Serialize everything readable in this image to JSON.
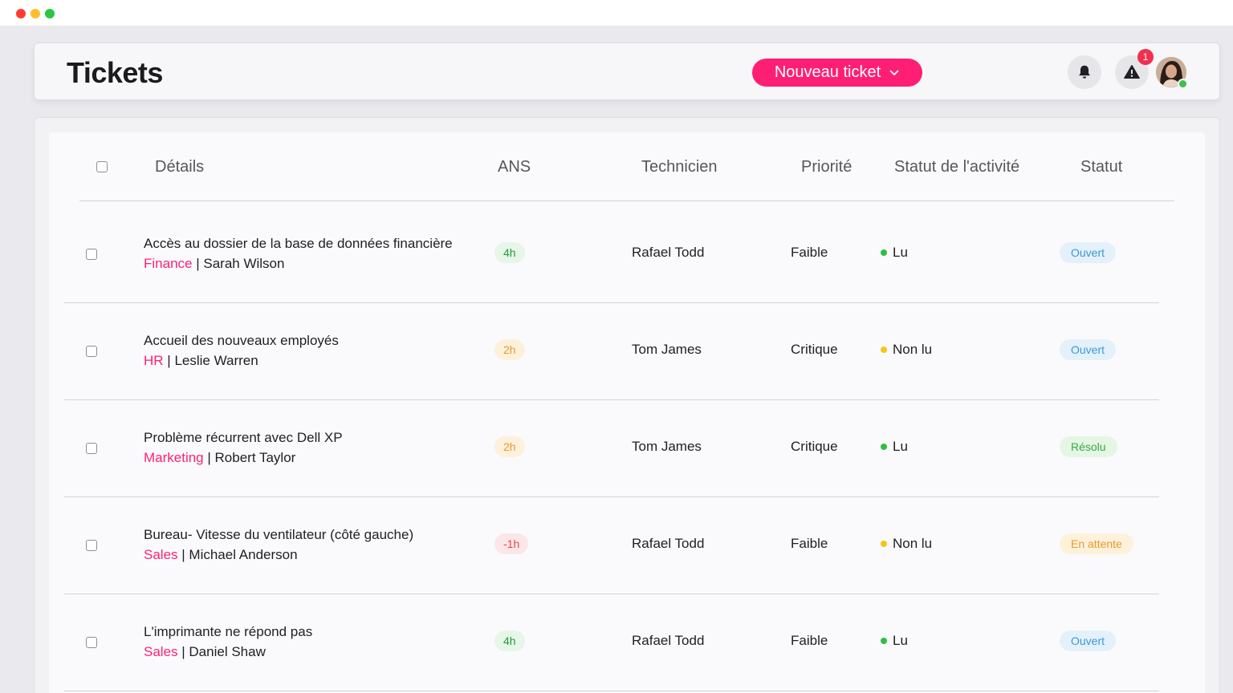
{
  "header": {
    "title": "Tickets",
    "new_ticket_label": "Nouveau ticket",
    "alert_count": "1"
  },
  "table": {
    "columns": [
      "Détails",
      "ANS",
      "Technicien",
      "Priorité",
      "Statut de l'activité",
      "Statut"
    ],
    "rows": [
      {
        "title": "Accès au dossier de la base de données financière",
        "department": "Finance",
        "requester": "Sarah Wilson",
        "ans": "4h",
        "ans_color": "#1f9d3a",
        "ans_bg": "#e6f6e9",
        "technician": "Rafael Todd",
        "priority": "Faible",
        "activity": "Lu",
        "activity_color": "#2fbf3f",
        "status": "Ouvert",
        "status_color": "#3d97d6",
        "status_bg": "#e4f1fb"
      },
      {
        "title": "Accueil des nouveaux employés",
        "department": "HR",
        "requester": "Leslie Warren",
        "ans": "2h",
        "ans_color": "#e69a2c",
        "ans_bg": "#fdf1dc",
        "technician": "Tom James",
        "priority": "Critique",
        "activity": "Non lu",
        "activity_color": "#f5c518",
        "status": "Ouvert",
        "status_color": "#3d97d6",
        "status_bg": "#e4f1fb"
      },
      {
        "title": "Problème récurrent avec Dell XP",
        "department": "Marketing",
        "requester": "Robert Taylor",
        "ans": "2h",
        "ans_color": "#e69a2c",
        "ans_bg": "#fdf1dc",
        "technician": "Tom James",
        "priority": "Critique",
        "activity": "Lu",
        "activity_color": "#2fbf3f",
        "status": "Résolu",
        "status_color": "#3aa745",
        "status_bg": "#e6f6e4"
      },
      {
        "title": "Bureau- Vitesse du ventilateur (côté gauche)",
        "department": "Sales",
        "requester": "Michael Anderson",
        "ans": "-1h",
        "ans_color": "#e5484d",
        "ans_bg": "#fde6e7",
        "technician": "Rafael Todd",
        "priority": "Faible",
        "activity": "Non lu",
        "activity_color": "#f5c518",
        "status": "En attente",
        "status_color": "#e69a2c",
        "status_bg": "#fdf1dc"
      },
      {
        "title": "L'imprimante ne répond pas",
        "department": "Sales",
        "requester": "Daniel Shaw",
        "ans": "4h",
        "ans_color": "#1f9d3a",
        "ans_bg": "#e6f6e9",
        "technician": "Rafael Todd",
        "priority": "Faible",
        "activity": "Lu",
        "activity_color": "#2fbf3f",
        "status": "Ouvert",
        "status_color": "#3d97d6",
        "status_bg": "#e4f1fb"
      }
    ]
  }
}
